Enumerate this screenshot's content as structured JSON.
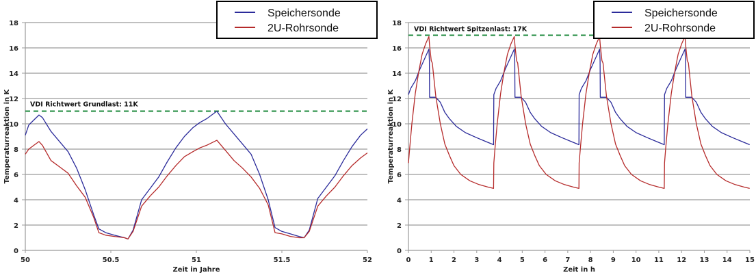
{
  "chart_data": [
    {
      "type": "line",
      "title": "",
      "xlabel": "Zeit in  Jahre",
      "ylabel": "Temperaturreaktion in K",
      "xlim": [
        50,
        52
      ],
      "ylim": [
        0,
        18
      ],
      "xticks": [
        "50",
        "50.5",
        "51",
        "51.5",
        "52"
      ],
      "xtick_values": [
        50,
        50.5,
        51,
        51.5,
        52
      ],
      "yticks": [
        "0",
        "2",
        "4",
        "6",
        "8",
        "10",
        "12",
        "14",
        "16",
        "18"
      ],
      "grid": true,
      "legend": "top-right",
      "reference_line": {
        "label": "VDI Richtwert Grundlast:  11K",
        "value": 11,
        "color": "#1e8a3c"
      },
      "series": [
        {
          "name": "Speichersonde",
          "color": "#2b2b9a",
          "x": [
            50.0,
            50.02,
            50.05,
            50.08,
            50.1,
            50.15,
            50.2,
            50.25,
            50.3,
            50.35,
            50.4,
            50.43,
            50.47,
            50.52,
            50.58,
            50.6,
            50.63,
            50.68,
            50.73,
            50.78,
            50.83,
            50.88,
            50.93,
            50.98,
            51.02,
            51.06,
            51.12,
            51.17,
            51.22,
            51.27,
            51.32,
            51.37,
            51.42,
            51.46,
            51.5,
            51.55,
            51.6,
            51.63,
            51.66,
            51.71,
            51.76,
            51.81,
            51.86,
            51.91,
            51.96,
            52.0
          ],
          "y": [
            9.1,
            9.9,
            10.3,
            10.7,
            10.5,
            9.4,
            8.6,
            7.8,
            6.5,
            4.8,
            2.8,
            1.7,
            1.4,
            1.2,
            1.0,
            0.9,
            1.6,
            4.0,
            4.9,
            5.8,
            7.0,
            8.1,
            9.0,
            9.7,
            10.1,
            10.4,
            11.0,
            10.0,
            9.2,
            8.4,
            7.6,
            6.0,
            4.0,
            1.8,
            1.5,
            1.3,
            1.1,
            1.0,
            1.6,
            4.1,
            5.0,
            5.9,
            7.1,
            8.2,
            9.1,
            9.6
          ]
        },
        {
          "name": "2U-Rohrsonde",
          "color": "#b52a2a",
          "x": [
            50.0,
            50.02,
            50.05,
            50.08,
            50.1,
            50.15,
            50.2,
            50.25,
            50.3,
            50.35,
            50.4,
            50.43,
            50.47,
            50.52,
            50.58,
            50.6,
            50.63,
            50.68,
            50.73,
            50.78,
            50.83,
            50.88,
            50.93,
            50.98,
            51.02,
            51.06,
            51.12,
            51.17,
            51.22,
            51.27,
            51.32,
            51.37,
            51.42,
            51.46,
            51.5,
            51.55,
            51.6,
            51.63,
            51.66,
            51.71,
            51.76,
            51.81,
            51.86,
            51.91,
            51.96,
            52.0
          ],
          "y": [
            7.6,
            8.0,
            8.3,
            8.6,
            8.3,
            7.1,
            6.6,
            6.1,
            5.1,
            4.2,
            2.6,
            1.4,
            1.2,
            1.1,
            1.0,
            0.9,
            1.5,
            3.5,
            4.3,
            5.0,
            5.9,
            6.7,
            7.4,
            7.8,
            8.1,
            8.3,
            8.7,
            7.9,
            7.1,
            6.5,
            5.8,
            4.9,
            3.6,
            1.4,
            1.3,
            1.1,
            1.0,
            1.0,
            1.5,
            3.5,
            4.3,
            5.0,
            5.9,
            6.7,
            7.3,
            7.7
          ]
        }
      ]
    },
    {
      "type": "line",
      "title": "",
      "xlabel": "Zeit in h",
      "ylabel": "Temperaturreaktion in K",
      "xlim": [
        0,
        15
      ],
      "ylim": [
        0,
        18
      ],
      "xticks": [
        "0",
        "1",
        "2",
        "3",
        "4",
        "5",
        "6",
        "7",
        "8",
        "9",
        "10",
        "11",
        "12",
        "13",
        "14",
        "15"
      ],
      "xtick_values": [
        0,
        1,
        2,
        3,
        4,
        5,
        6,
        7,
        8,
        9,
        10,
        11,
        12,
        13,
        14,
        15
      ],
      "yticks": [
        "0",
        "2",
        "4",
        "6",
        "8",
        "10",
        "12",
        "14",
        "16",
        "18"
      ],
      "grid": true,
      "legend": "top-right",
      "reference_line": {
        "label": "VDI Richtwert Spitzenlast: 17K",
        "value": 17,
        "color": "#1e8a3c"
      },
      "period_h": 3.75,
      "series": [
        {
          "name": "Speichersonde",
          "color": "#2b2b9a",
          "cycle_x": [
            0.0,
            0.1,
            0.3,
            0.5,
            0.7,
            0.9,
            0.92,
            0.93,
            1.2,
            1.4,
            1.6,
            1.8,
            2.1,
            2.5,
            3.0,
            3.4,
            3.74
          ],
          "cycle_y": [
            12.3,
            12.8,
            13.4,
            14.3,
            15.1,
            15.9,
            15.0,
            12.1,
            12.1,
            11.7,
            10.9,
            10.4,
            9.8,
            9.3,
            8.9,
            8.6,
            8.35
          ]
        },
        {
          "name": "2U-Rohrsonde",
          "color": "#b52a2a",
          "cycle_x": [
            0.0,
            0.05,
            0.15,
            0.3,
            0.45,
            0.6,
            0.75,
            0.9,
            0.93,
            1.0,
            1.05,
            1.2,
            1.4,
            1.6,
            1.8,
            2.0,
            2.3,
            2.7,
            3.1,
            3.5,
            3.74
          ],
          "cycle_y": [
            6.9,
            8.0,
            10.0,
            12.4,
            14.1,
            15.5,
            16.3,
            16.9,
            16.2,
            15.0,
            14.8,
            12.2,
            10.0,
            8.4,
            7.5,
            6.7,
            6.0,
            5.5,
            5.2,
            5.0,
            4.9
          ]
        }
      ]
    }
  ],
  "legend": {
    "items": [
      {
        "label": "Speichersonde",
        "color": "#2b2b9a"
      },
      {
        "label": "2U-Rohrsonde",
        "color": "#b52a2a"
      }
    ]
  }
}
